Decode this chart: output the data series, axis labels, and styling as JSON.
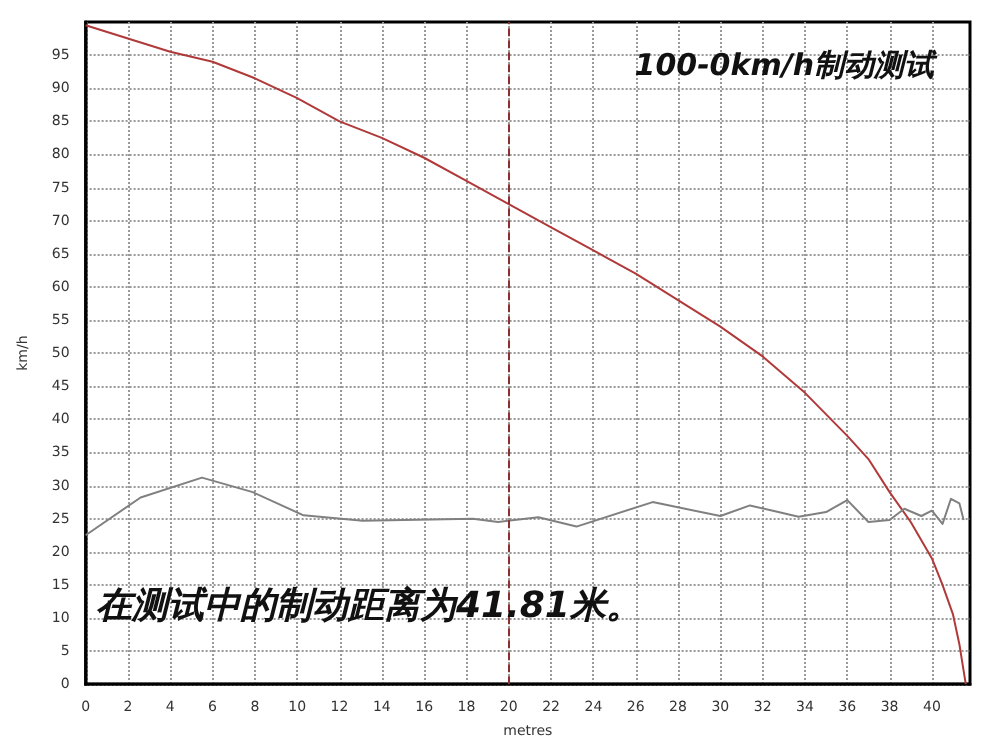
{
  "chart_data": {
    "type": "line",
    "title": "100-0km/h制动测试",
    "xlabel": "metres",
    "ylabel": "km/h",
    "annotations": [
      "在测试中的制动距离为41.81米。"
    ],
    "xlim": [
      0,
      41.8
    ],
    "xticks": [
      0,
      2,
      4,
      6,
      8,
      10,
      12,
      14,
      16,
      18,
      20,
      22,
      24,
      26,
      28,
      30,
      32,
      34,
      36,
      38,
      40
    ],
    "ylim": [
      0,
      100
    ],
    "yticks": [
      0,
      5,
      10,
      15,
      20,
      25,
      30,
      35,
      40,
      45,
      50,
      55,
      60,
      65,
      70,
      75,
      80,
      85,
      90,
      95
    ],
    "grid": true,
    "marker": "none",
    "line_style": "solid",
    "ref_lines": [
      {
        "axis": "x",
        "value": 20,
        "color": "#8b3030",
        "line_style": "dashed"
      }
    ],
    "series": [
      {
        "color": "#b03a3a",
        "x": [
          0,
          4,
          6,
          8,
          10,
          12,
          14,
          16,
          18,
          20,
          22,
          24,
          26,
          28,
          30,
          32,
          34,
          36,
          37,
          38,
          39,
          40,
          40.5,
          41,
          41.3,
          41.5,
          41.6
        ],
        "values": [
          99.5,
          95.5,
          94,
          91.5,
          88.5,
          85,
          82.5,
          79.5,
          76,
          72.5,
          69,
          65.5,
          62,
          58,
          54,
          49.5,
          44,
          37.5,
          34,
          29,
          24.5,
          19,
          15,
          10.5,
          6,
          2,
          0
        ]
      },
      {
        "color": "#808080",
        "x": [
          0,
          2.6,
          5.5,
          7.9,
          10.3,
          13.1,
          18.3,
          19.5,
          21.4,
          23.2,
          26.8,
          30,
          31.4,
          33.7,
          35,
          36,
          37,
          38,
          38.7,
          39.5,
          40,
          40.5,
          40.9,
          41.3,
          41.5
        ],
        "values": [
          22.5,
          28.2,
          31.2,
          29,
          25.5,
          24.7,
          25,
          24.5,
          25.2,
          23.8,
          27.5,
          25.4,
          27,
          25.3,
          26,
          27.8,
          24.5,
          24.8,
          26.5,
          25.4,
          26.2,
          24.2,
          28,
          27.3,
          24.8
        ]
      }
    ]
  }
}
